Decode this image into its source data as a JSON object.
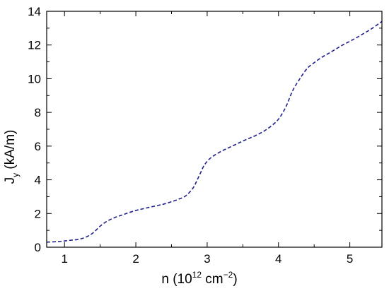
{
  "chart_data": {
    "type": "line",
    "title": "",
    "xlabel": {
      "base": "n (10",
      "sup1": "12",
      "mid": " cm",
      "sup2": "−2",
      "end": ")"
    },
    "ylabel": {
      "base": "J",
      "sub": "y",
      "unit": " (kA/m)"
    },
    "xlim": [
      0.75,
      5.45
    ],
    "ylim": [
      0,
      14
    ],
    "xticks": [
      1,
      2,
      3,
      4,
      5
    ],
    "yticks": [
      0,
      2,
      4,
      6,
      8,
      10,
      12,
      14
    ],
    "grid": false,
    "legend": "none",
    "series": [
      {
        "color": "#1f1f8c",
        "line_style": "dashed",
        "x": [
          0.75,
          0.9,
          1.0,
          1.1,
          1.2,
          1.3,
          1.4,
          1.5,
          1.6,
          1.7,
          1.8,
          1.9,
          2.0,
          2.1,
          2.2,
          2.3,
          2.4,
          2.5,
          2.6,
          2.7,
          2.8,
          2.85,
          2.9,
          2.95,
          3.0,
          3.05,
          3.1,
          3.2,
          3.3,
          3.4,
          3.5,
          3.6,
          3.7,
          3.8,
          3.9,
          4.0,
          4.1,
          4.2,
          4.3,
          4.4,
          4.5,
          4.6,
          4.7,
          4.8,
          4.9,
          5.0,
          5.1,
          5.2,
          5.3,
          5.45
        ],
        "y": [
          0.3,
          0.33,
          0.37,
          0.42,
          0.47,
          0.6,
          0.85,
          1.25,
          1.55,
          1.75,
          1.9,
          2.05,
          2.18,
          2.28,
          2.38,
          2.47,
          2.57,
          2.7,
          2.85,
          3.05,
          3.5,
          3.9,
          4.35,
          4.8,
          5.1,
          5.3,
          5.45,
          5.7,
          5.9,
          6.1,
          6.3,
          6.48,
          6.67,
          6.9,
          7.2,
          7.6,
          8.3,
          9.3,
          10.0,
          10.6,
          10.95,
          11.25,
          11.5,
          11.75,
          12.0,
          12.22,
          12.45,
          12.7,
          12.95,
          13.4
        ]
      }
    ]
  }
}
